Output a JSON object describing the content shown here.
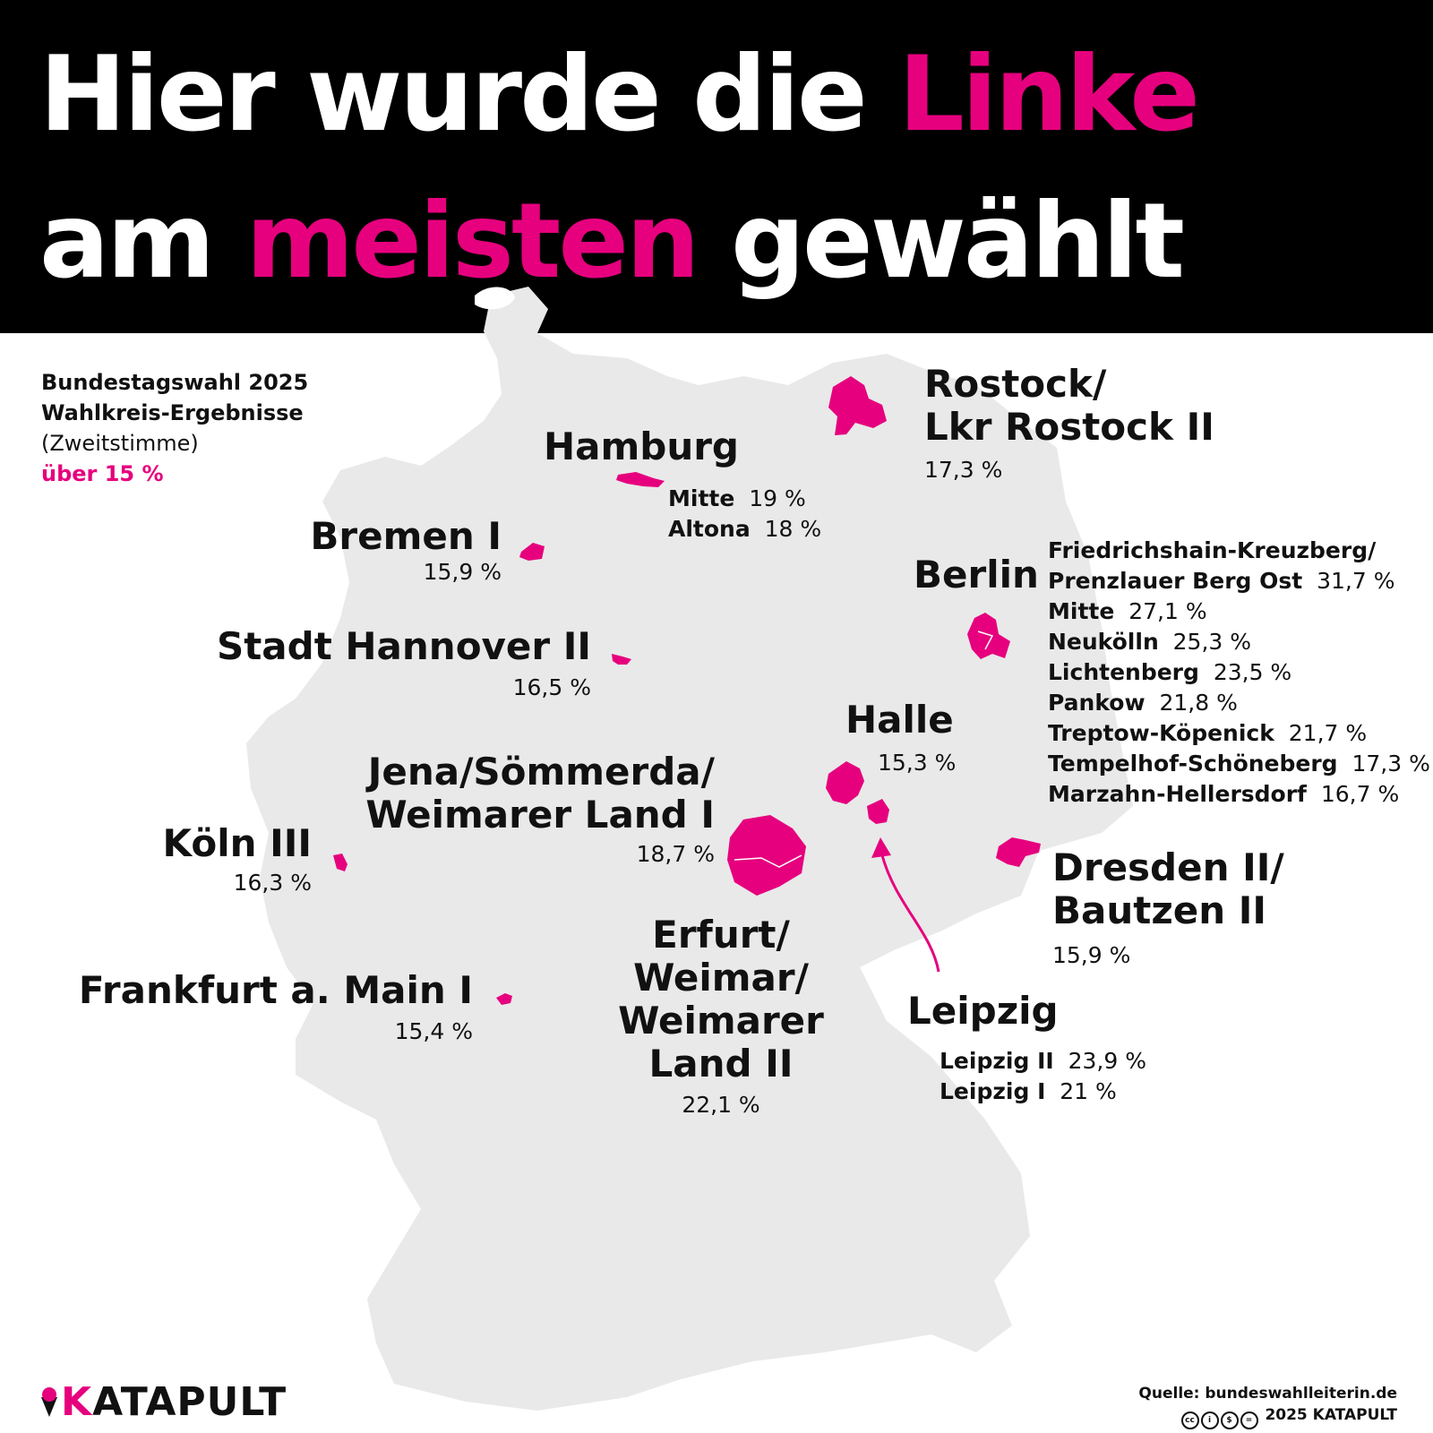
{
  "title": {
    "line1_prefix": "Hier wurde die ",
    "line1_highlight": "Linke",
    "line2_prefix": "am ",
    "line2_highlight": "meisten",
    "line2_suffix": " gewählt"
  },
  "legend": {
    "line1": "Bundestagswahl 2025",
    "line2": "Wahlkreis-Ergebnisse",
    "line3": "(Zweitstimme)",
    "line4": "über 15 %"
  },
  "colors": {
    "highlight": "#e6007e",
    "header_bg": "#000000",
    "map_fill": "#e9e9e9",
    "text": "#111111"
  },
  "regions": {
    "rostock": {
      "name_l1": "Rostock/",
      "name_l2": "Lkr Rostock II",
      "value": "17,3 %"
    },
    "hamburg": {
      "name": "Hamburg",
      "districts": [
        {
          "name": "Mitte",
          "value": "19 %"
        },
        {
          "name": "Altona",
          "value": "18 %"
        }
      ]
    },
    "bremen": {
      "name": "Bremen I",
      "value": "15,9 %"
    },
    "hannover": {
      "name": "Stadt Hannover II",
      "value": "16,5 %"
    },
    "berlin": {
      "name": "Berlin",
      "districts": [
        {
          "name": "Friedrichshain-Kreuzberg/",
          "value": ""
        },
        {
          "name": "Prenzlauer Berg Ost",
          "value": "31,7 %"
        },
        {
          "name": "Mitte",
          "value": "27,1 %"
        },
        {
          "name": "Neukölln",
          "value": "25,3 %"
        },
        {
          "name": "Lichtenberg",
          "value": "23,5 %"
        },
        {
          "name": "Pankow",
          "value": "21,8 %"
        },
        {
          "name": "Treptow-Köpenick",
          "value": "21,7 %"
        },
        {
          "name": "Tempelhof-Schöneberg",
          "value": "17,3 %"
        },
        {
          "name": "Marzahn-Hellersdorf",
          "value": "16,7 %"
        }
      ]
    },
    "halle": {
      "name": "Halle",
      "value": "15,3 %"
    },
    "jena": {
      "name_l1": "Jena/Sömmerda/",
      "name_l2": "Weimarer Land I",
      "value": "18,7 %"
    },
    "koeln": {
      "name": "Köln III",
      "value": "16,3 %"
    },
    "dresden": {
      "name_l1": "Dresden II/",
      "name_l2": "Bautzen II",
      "value": "15,9 %"
    },
    "erfurt": {
      "name_l1": "Erfurt/",
      "name_l2": "Weimar/",
      "name_l3": "Weimarer",
      "name_l4": "Land II",
      "value": "22,1 %"
    },
    "frankfurt": {
      "name": "Frankfurt a. Main I",
      "value": "15,4 %"
    },
    "leipzig": {
      "name": "Leipzig",
      "districts": [
        {
          "name": "Leipzig II",
          "value": "23,9 %"
        },
        {
          "name": "Leipzig I",
          "value": "21 %"
        }
      ]
    }
  },
  "footer": {
    "brand": "KATAPULT",
    "source": "Quelle: bundeswahlleiterin.de",
    "copyright": "2025 KATAPULT",
    "license_icons": [
      "cc-icon",
      "by-icon",
      "nc-icon",
      "nd-icon"
    ]
  }
}
